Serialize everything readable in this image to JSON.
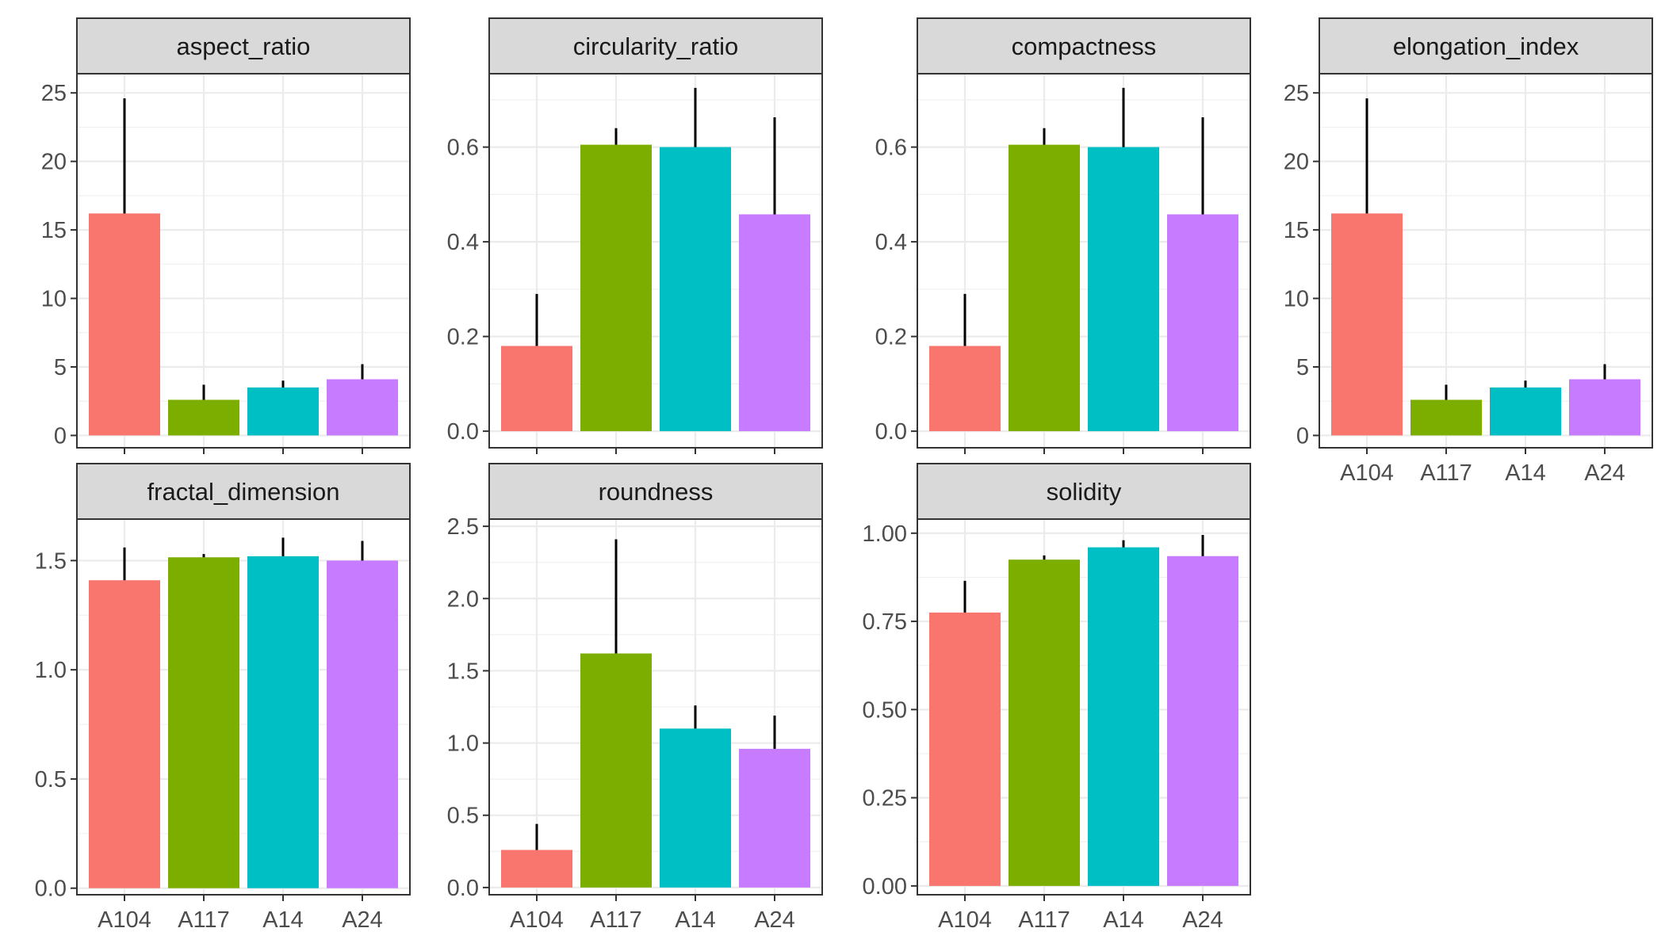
{
  "chart_data": {
    "type": "bar",
    "layout": "facet-grid",
    "categories": [
      "A104",
      "A117",
      "A14",
      "A24"
    ],
    "colors": [
      "#F8766D",
      "#7CAE00",
      "#00BFC4",
      "#C77CFF"
    ],
    "panel_background": "#ffffff",
    "strip_background": "#d9d9d9",
    "grid": true,
    "legend": "none",
    "panels": [
      {
        "title": "aspect_ratio",
        "ylim": [
          -0.9,
          26.4
        ],
        "yticks": [
          0,
          5,
          10,
          15,
          20,
          25
        ],
        "ytick_labels": [
          "0",
          "5",
          "10",
          "15",
          "20",
          "25"
        ],
        "values": [
          16.2,
          2.6,
          3.5,
          4.1
        ],
        "errors": [
          8.4,
          1.1,
          0.5,
          1.1
        ],
        "show_x_labels": false
      },
      {
        "title": "circularity_ratio",
        "ylim": [
          -0.035,
          0.755
        ],
        "yticks": [
          0,
          0.2,
          0.4,
          0.6
        ],
        "ytick_labels": [
          "0.0",
          "0.2",
          "0.4",
          "0.6"
        ],
        "values": [
          0.18,
          0.605,
          0.6,
          0.458
        ],
        "errors": [
          0.11,
          0.035,
          0.125,
          0.205
        ],
        "show_x_labels": false
      },
      {
        "title": "compactness",
        "ylim": [
          -0.035,
          0.755
        ],
        "yticks": [
          0,
          0.2,
          0.4,
          0.6
        ],
        "ytick_labels": [
          "0.0",
          "0.2",
          "0.4",
          "0.6"
        ],
        "values": [
          0.18,
          0.605,
          0.6,
          0.458
        ],
        "errors": [
          0.11,
          0.035,
          0.125,
          0.205
        ],
        "show_x_labels": false
      },
      {
        "title": "elongation_index",
        "ylim": [
          -0.9,
          26.4
        ],
        "yticks": [
          0,
          5,
          10,
          15,
          20,
          25
        ],
        "ytick_labels": [
          "0",
          "5",
          "10",
          "15",
          "20",
          "25"
        ],
        "values": [
          16.2,
          2.6,
          3.5,
          4.1
        ],
        "errors": [
          8.4,
          1.1,
          0.5,
          1.1
        ],
        "show_x_labels": true
      },
      {
        "title": "fractal_dimension",
        "ylim": [
          -0.03,
          1.69
        ],
        "yticks": [
          0,
          0.5,
          1.0,
          1.5
        ],
        "ytick_labels": [
          "0.0",
          "0.5",
          "1.0",
          "1.5"
        ],
        "values": [
          1.41,
          1.515,
          1.52,
          1.5
        ],
        "errors": [
          0.15,
          0.015,
          0.085,
          0.09
        ],
        "show_x_labels": true
      },
      {
        "title": "roundness",
        "ylim": [
          -0.05,
          2.55
        ],
        "yticks": [
          0,
          0.5,
          1.0,
          1.5,
          2.0,
          2.5
        ],
        "ytick_labels": [
          "0.0",
          "0.5",
          "1.0",
          "1.5",
          "2.0",
          "2.5"
        ],
        "values": [
          0.26,
          1.62,
          1.1,
          0.96
        ],
        "errors": [
          0.18,
          0.79,
          0.16,
          0.23
        ],
        "show_x_labels": true
      },
      {
        "title": "solidity",
        "ylim": [
          -0.025,
          1.04
        ],
        "yticks": [
          0,
          0.25,
          0.5,
          0.75,
          1.0
        ],
        "ytick_labels": [
          "0.00",
          "0.25",
          "0.50",
          "0.75",
          "1.00"
        ],
        "values": [
          0.775,
          0.925,
          0.96,
          0.935
        ],
        "errors": [
          0.09,
          0.012,
          0.02,
          0.06
        ],
        "show_x_labels": true
      }
    ]
  }
}
